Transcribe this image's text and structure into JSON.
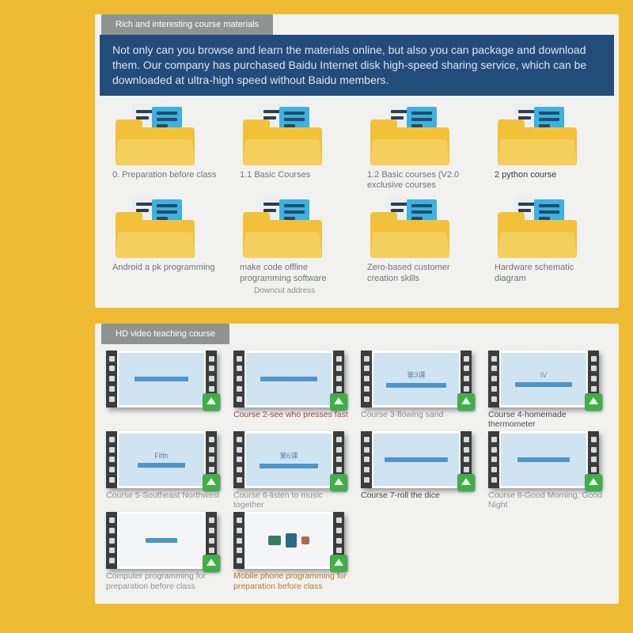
{
  "colors": {
    "page_bg": "#eebb32",
    "panel_bg": "#f1f1f0",
    "tab_bg": "#8f9492",
    "banner_bg": "#224c7a",
    "banner_text": "#dce6ef",
    "folder_body": "#f2c13a",
    "folder_flap": "#f4cf5e",
    "doc_blue": "#3db1e0",
    "badge_green": "#3fae4b",
    "label_muted": "#707576",
    "label_dark": "#3b3d3e",
    "label_red": "#a04a3c",
    "label_orange": "#b77a28"
  },
  "section1": {
    "title": "Rich and interesting course materials",
    "banner": "Not only can you browse and learn the materials online, but also you can package and download them. Our company has purchased Baidu Internet disk high-speed sharing service, which can be downloaded at ultra-high speed without Baidu members.",
    "folders": [
      {
        "label": "0. Preparation before class",
        "style": "muted"
      },
      {
        "label": "1.1 Basic Courses",
        "style": "muted"
      },
      {
        "label": "1.2 Basic courses (V2.0 exclusive courses",
        "style": "muted"
      },
      {
        "label": "2 python course",
        "style": "dark"
      },
      {
        "label": "Android a pk programming",
        "style": "muted"
      },
      {
        "label": "make code offline programming software",
        "sub": "Downcut address",
        "style": "muted"
      },
      {
        "label": "Zero-based customer creation skills",
        "style": "muted"
      },
      {
        "label": "Hardware schematic diagram",
        "style": "muted"
      }
    ]
  },
  "section2": {
    "title": "HD video teaching course",
    "videos": [
      {
        "label": "",
        "screen": "blue",
        "top": "",
        "line_w": 68,
        "style": "muted"
      },
      {
        "label": "Course 2-see who presses fast",
        "screen": "blue",
        "top": "",
        "line_w": 72,
        "style": "red"
      },
      {
        "label": "Course 3-flowing sand",
        "screen": "blue",
        "top": "第3课",
        "line_w": 76,
        "style": "muted"
      },
      {
        "label": "Course 4-homemade thermometer",
        "screen": "blue",
        "top": "IV",
        "line_w": 72,
        "style": "dark"
      },
      {
        "label": "Course 5-Southeast Northwest",
        "screen": "blue",
        "top": "Fifth",
        "line_w": 60,
        "style": "muted"
      },
      {
        "label": "Course 6-listen to music together",
        "screen": "blue",
        "top": "第6课",
        "line_w": 74,
        "style": "muted"
      },
      {
        "label": "Course 7-roll the dice",
        "screen": "blue",
        "top": "",
        "line_w": 80,
        "style": "dark"
      },
      {
        "label": "Course 8-Good Morning, Good Night",
        "screen": "blue",
        "top": "",
        "line_w": 66,
        "style": "muted"
      },
      {
        "label": "Computer programming for preparation before class",
        "screen": "white",
        "top": "",
        "line_w": 40,
        "style": "muted"
      },
      {
        "label": "Mobile phone programming for preparation before class",
        "screen": "photo",
        "top": "",
        "line_w": 0,
        "style": "orange"
      }
    ]
  }
}
